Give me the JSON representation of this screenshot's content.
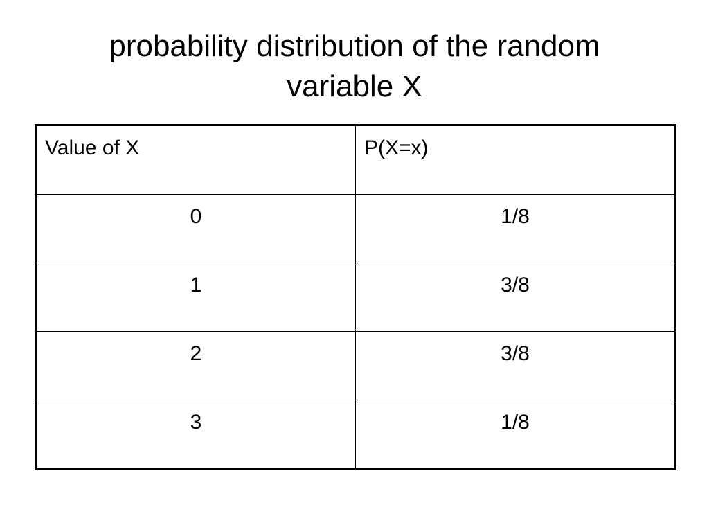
{
  "slide": {
    "title_line1": "probability distribution of the random",
    "title_line2": "variable X"
  },
  "table": {
    "headers": [
      "Value of X",
      "P(X=x)"
    ],
    "rows": [
      {
        "x": "0",
        "p": "1/8"
      },
      {
        "x": "1",
        "p": "3/8"
      },
      {
        "x": "2",
        "p": "3/8"
      },
      {
        "x": "3",
        "p": "1/8"
      }
    ]
  }
}
